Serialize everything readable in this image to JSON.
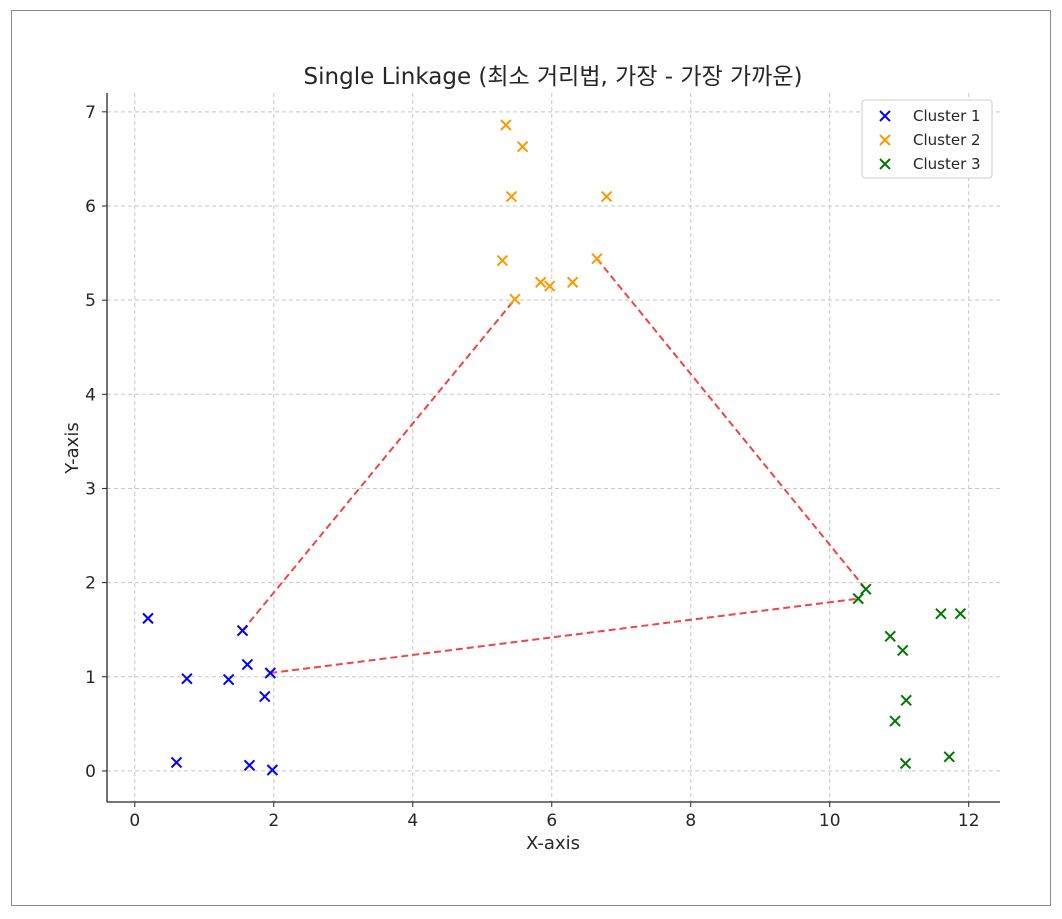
{
  "chart_data": {
    "type": "scatter",
    "title": "Single Linkage (최소 거리법, 가장 - 가장 가까운)",
    "xlabel": "X-axis",
    "ylabel": "Y-axis",
    "xlim": [
      -0.4,
      12.45
    ],
    "ylim": [
      -0.33,
      7.2
    ],
    "xticks": [
      0,
      2,
      4,
      6,
      8,
      10,
      12
    ],
    "yticks": [
      0,
      1,
      2,
      3,
      4,
      5,
      6,
      7
    ],
    "grid": true,
    "legend_position": "top-right",
    "marker": "x",
    "series": [
      {
        "name": "Cluster 1",
        "color": "#0000ff",
        "points": [
          [
            0.19,
            1.62
          ],
          [
            0.6,
            0.09
          ],
          [
            0.75,
            0.98
          ],
          [
            1.35,
            0.97
          ],
          [
            1.55,
            1.49
          ],
          [
            1.62,
            1.13
          ],
          [
            1.65,
            0.06
          ],
          [
            1.87,
            0.79
          ],
          [
            1.95,
            1.04
          ],
          [
            1.98,
            0.01
          ]
        ]
      },
      {
        "name": "Cluster 2",
        "color": "#ff9900",
        "points": [
          [
            5.34,
            6.86
          ],
          [
            5.58,
            6.63
          ],
          [
            5.42,
            6.1
          ],
          [
            6.79,
            6.1
          ],
          [
            5.29,
            5.42
          ],
          [
            6.65,
            5.44
          ],
          [
            5.84,
            5.19
          ],
          [
            5.97,
            5.15
          ],
          [
            6.3,
            5.19
          ],
          [
            5.47,
            5.01
          ]
        ]
      },
      {
        "name": "Cluster 3",
        "color": "#007800",
        "points": [
          [
            10.52,
            1.93
          ],
          [
            10.41,
            1.83
          ],
          [
            11.6,
            1.67
          ],
          [
            11.88,
            1.67
          ],
          [
            10.87,
            1.43
          ],
          [
            11.05,
            1.28
          ],
          [
            11.1,
            0.75
          ],
          [
            10.94,
            0.53
          ],
          [
            11.72,
            0.15
          ],
          [
            11.09,
            0.08
          ]
        ]
      }
    ],
    "link_lines": {
      "color": "#f24444",
      "style": "dashed",
      "segments": [
        [
          [
            1.55,
            1.49
          ],
          [
            5.47,
            5.01
          ]
        ],
        [
          [
            6.65,
            5.44
          ],
          [
            10.52,
            1.93
          ]
        ],
        [
          [
            1.95,
            1.04
          ],
          [
            10.41,
            1.83
          ]
        ]
      ]
    }
  }
}
